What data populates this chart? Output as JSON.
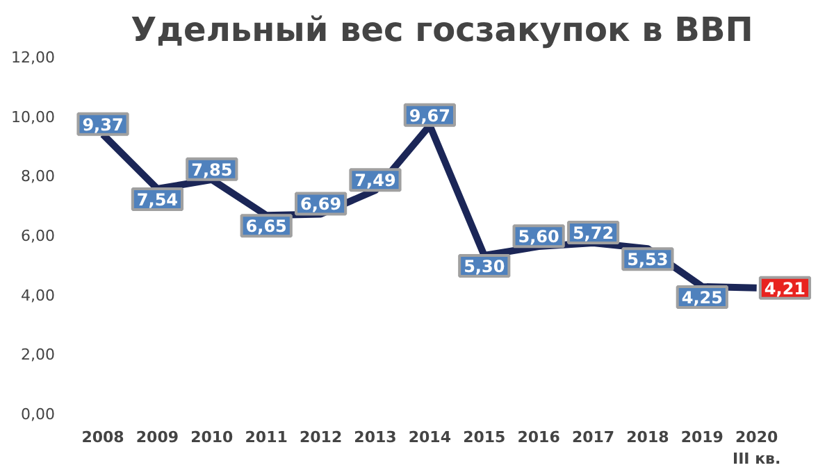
{
  "chart_data": {
    "type": "line",
    "title": "Удельный вес госзакупок в ВВП",
    "categories": [
      "2008",
      "2009",
      "2010",
      "2011",
      "2012",
      "2013",
      "2014",
      "2015",
      "2016",
      "2017",
      "2018",
      "2019",
      "2020\nIII кв."
    ],
    "series": [
      {
        "color": "#1b2657",
        "values": [
          9.37,
          7.54,
          7.85,
          6.65,
          6.69,
          7.49,
          9.67,
          5.3,
          5.6,
          5.72,
          5.53,
          4.25,
          4.21
        ]
      }
    ],
    "value_labels": [
      "9,37",
      "7,54",
      "7,85",
      "6,65",
      "6,69",
      "7,49",
      "9,67",
      "5,30",
      "5,60",
      "5,72",
      "5,53",
      "4,25",
      "4,21"
    ],
    "colors": [
      "#4f81bd",
      "#4f81bd",
      "#4f81bd",
      "#4f81bd",
      "#4f81bd",
      "#4f81bd",
      "#4f81bd",
      "#4f81bd",
      "#4f81bd",
      "#4f81bd",
      "#4f81bd",
      "#4f81bd",
      "#e8231f"
    ],
    "ylim": [
      0,
      12
    ],
    "yticks": [
      {
        "value": 0,
        "label": "0,00"
      },
      {
        "value": 2,
        "label": "2,00"
      },
      {
        "value": 4,
        "label": "4,00"
      },
      {
        "value": 6,
        "label": "6,00"
      },
      {
        "value": 8,
        "label": "8,00"
      },
      {
        "value": 10,
        "label": "10,00"
      },
      {
        "value": 12,
        "label": "12,00"
      }
    ],
    "grid": false,
    "marker": "none",
    "line_style": "solid"
  }
}
